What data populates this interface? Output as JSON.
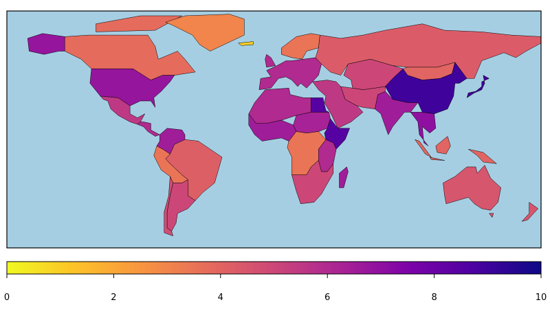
{
  "chart_data": {
    "type": "choropleth",
    "values": [
      3.8,
      6.8,
      3.0,
      1.0,
      5.5,
      6.0,
      6.5,
      4.2,
      3.5,
      5.0,
      4.8,
      3.5,
      6.0,
      4.3,
      5.0,
      4.0,
      9.0,
      6.5,
      5.5,
      5.0,
      6.0,
      8.5,
      6.3,
      6.5,
      8.5,
      3.5,
      6.0,
      5.0,
      6.5,
      7.0,
      4.0,
      4.5,
      9.0,
      4.5
    ],
    "colors": [
      "#f0f921",
      "#fdc328",
      "#f89540",
      "#e66c5c",
      "#cc4778",
      "#a92395",
      "#7e03a8",
      "#4c02a1",
      "#0d0887"
    ],
    "clim": [
      0,
      10
    ],
    "cticks": [
      0,
      2,
      4,
      6,
      8,
      10
    ]
  }
}
